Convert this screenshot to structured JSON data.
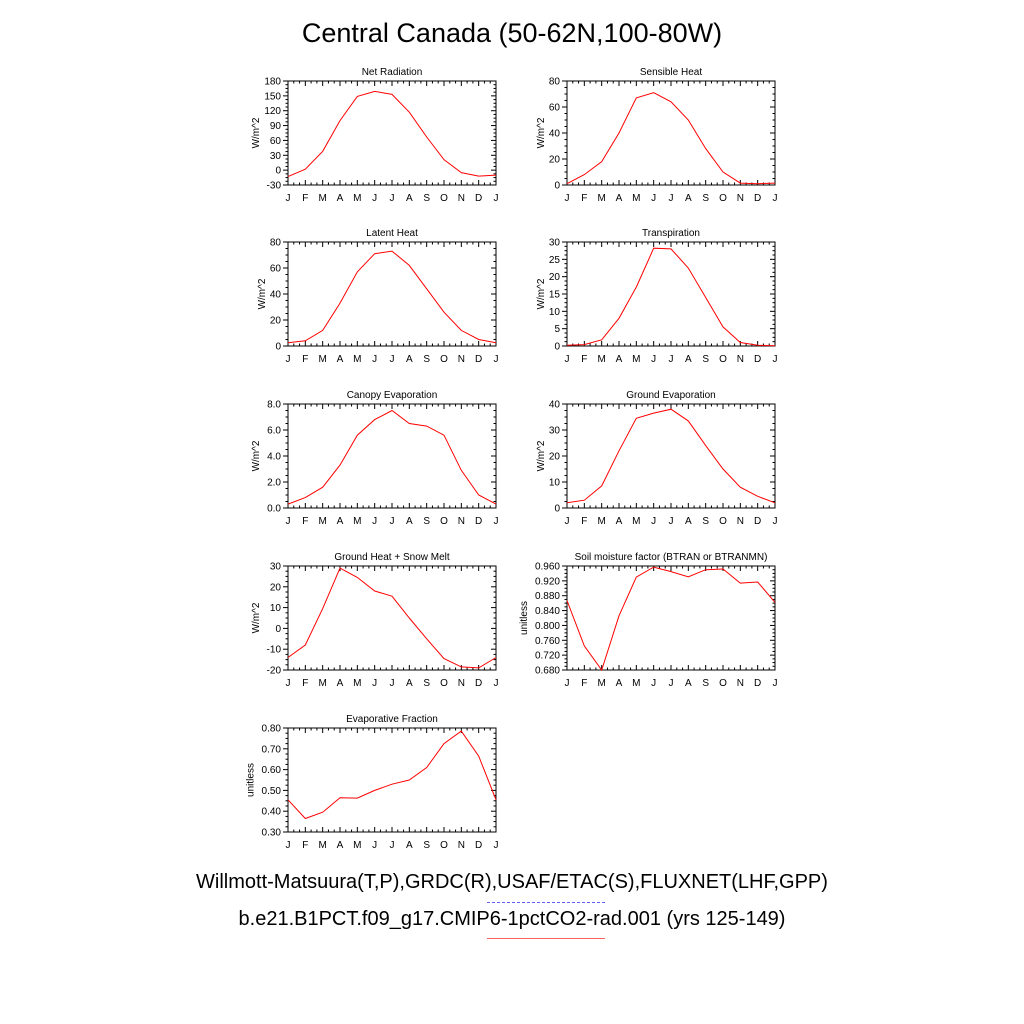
{
  "title": "Central Canada (50-62N,100-80W)",
  "footer": {
    "line1": "Willmott-Matsuura(T,P),GRDC(R),USAF/ETAC(S),FLUXNET(LHF,GPP)",
    "line2": "b.e21.B1PCT.f09_g17.CMIP6-1pctCO2-rad.001 (yrs 125-149)"
  },
  "colors": {
    "model_line": "#ff0000",
    "obs_legend": "#6060ff",
    "axes": "#000000"
  },
  "chart_data": [
    {
      "type": "line",
      "title": "Net Radiation",
      "ylabel": "W/m^2",
      "categories": [
        "J",
        "F",
        "M",
        "A",
        "M",
        "J",
        "J",
        "A",
        "S",
        "O",
        "N",
        "D",
        "J"
      ],
      "ylim": [
        -30,
        180
      ],
      "yticks": [
        "-30",
        "0",
        "30",
        "60",
        "90",
        "120",
        "150",
        "180"
      ],
      "tick_values": [
        -30,
        0,
        30,
        60,
        90,
        120,
        150,
        180
      ],
      "series": [
        {
          "values": [
            -13,
            2,
            38,
            100,
            149,
            159,
            153,
            117,
            67,
            21,
            -5,
            -12,
            -10
          ]
        }
      ]
    },
    {
      "type": "line",
      "title": "Sensible Heat",
      "ylabel": "W/m^2",
      "categories": [
        "J",
        "F",
        "M",
        "A",
        "M",
        "J",
        "J",
        "A",
        "S",
        "O",
        "N",
        "D",
        "J"
      ],
      "ylim": [
        0,
        80
      ],
      "yticks": [
        "0",
        "20",
        "40",
        "60",
        "80"
      ],
      "tick_values": [
        0,
        20,
        40,
        60,
        80
      ],
      "series": [
        {
          "values": [
            1,
            8,
            18,
            40,
            67,
            71,
            64,
            50,
            28,
            10,
            1.5,
            1,
            1.5
          ]
        }
      ]
    },
    {
      "type": "line",
      "title": "Latent Heat",
      "ylabel": "W/m^2",
      "categories": [
        "J",
        "F",
        "M",
        "A",
        "M",
        "J",
        "J",
        "A",
        "S",
        "O",
        "N",
        "D",
        "J"
      ],
      "ylim": [
        0,
        80
      ],
      "yticks": [
        "0",
        "20",
        "40",
        "60",
        "80"
      ],
      "tick_values": [
        0,
        20,
        40,
        60,
        80
      ],
      "series": [
        {
          "values": [
            2.5,
            4,
            12,
            33,
            57,
            71,
            73,
            62,
            44,
            26,
            12,
            5,
            2.5
          ]
        }
      ]
    },
    {
      "type": "line",
      "title": "Transpiration",
      "ylabel": "W/m^2",
      "categories": [
        "J",
        "F",
        "M",
        "A",
        "M",
        "J",
        "J",
        "A",
        "S",
        "O",
        "N",
        "D",
        "J"
      ],
      "ylim": [
        0,
        30
      ],
      "yticks": [
        "0",
        "5",
        "10",
        "15",
        "20",
        "25",
        "30"
      ],
      "tick_values": [
        0,
        5,
        10,
        15,
        20,
        25,
        30
      ],
      "series": [
        {
          "values": [
            0.2,
            0.4,
            1.8,
            8,
            17,
            28.2,
            28,
            22.5,
            14,
            5.5,
            1,
            0.2,
            0.1
          ]
        }
      ]
    },
    {
      "type": "line",
      "title": "Canopy Evaporation",
      "ylabel": "W/m^2",
      "categories": [
        "J",
        "F",
        "M",
        "A",
        "M",
        "J",
        "J",
        "A",
        "S",
        "O",
        "N",
        "D",
        "J"
      ],
      "ylim": [
        0,
        8
      ],
      "yticks": [
        "0.0",
        "2.0",
        "4.0",
        "6.0",
        "8.0"
      ],
      "tick_values": [
        0,
        2,
        4,
        6,
        8
      ],
      "series": [
        {
          "values": [
            0.3,
            0.8,
            1.6,
            3.3,
            5.6,
            6.8,
            7.5,
            6.5,
            6.3,
            5.6,
            2.9,
            1.0,
            0.3
          ]
        }
      ]
    },
    {
      "type": "line",
      "title": "Ground Evaporation",
      "ylabel": "W/m^2",
      "categories": [
        "J",
        "F",
        "M",
        "A",
        "M",
        "J",
        "J",
        "A",
        "S",
        "O",
        "N",
        "D",
        "J"
      ],
      "ylim": [
        0,
        40
      ],
      "yticks": [
        "0",
        "10",
        "20",
        "30",
        "40"
      ],
      "tick_values": [
        0,
        10,
        20,
        30,
        40
      ],
      "series": [
        {
          "values": [
            2,
            3,
            8.5,
            22,
            34.5,
            36.5,
            38,
            33.5,
            24,
            15,
            8,
            4.5,
            2
          ]
        }
      ]
    },
    {
      "type": "line",
      "title": "Ground Heat + Snow Melt",
      "ylabel": "W/m^2",
      "categories": [
        "J",
        "F",
        "M",
        "A",
        "M",
        "J",
        "J",
        "A",
        "S",
        "O",
        "N",
        "D",
        "J"
      ],
      "ylim": [
        -20,
        30
      ],
      "yticks": [
        "-20",
        "-10",
        "0",
        "10",
        "20",
        "30"
      ],
      "tick_values": [
        -20,
        -10,
        0,
        10,
        20,
        30
      ],
      "series": [
        {
          "values": [
            -14,
            -8,
            9.5,
            29,
            24.5,
            18,
            15.5,
            5,
            -5,
            -14.5,
            -18.5,
            -19,
            -14
          ]
        }
      ]
    },
    {
      "type": "line",
      "title": "Soil moisture factor (BTRAN or BTRANMN)",
      "ylabel": "unitless",
      "categories": [
        "J",
        "F",
        "M",
        "A",
        "M",
        "J",
        "J",
        "A",
        "S",
        "O",
        "N",
        "D",
        "J"
      ],
      "ylim": [
        0.68,
        0.96
      ],
      "yticks": [
        "0.680",
        "0.720",
        "0.760",
        "0.800",
        "0.840",
        "0.880",
        "0.920",
        "0.960"
      ],
      "tick_values": [
        0.68,
        0.72,
        0.76,
        0.8,
        0.84,
        0.88,
        0.92,
        0.96
      ],
      "series": [
        {
          "values": [
            0.867,
            0.745,
            0.68,
            0.826,
            0.93,
            0.957,
            0.945,
            0.931,
            0.95,
            0.952,
            0.914,
            0.917,
            0.862
          ]
        }
      ]
    },
    {
      "type": "line",
      "title": "Evaporative Fraction",
      "ylabel": "unitless",
      "categories": [
        "J",
        "F",
        "M",
        "A",
        "M",
        "J",
        "J",
        "A",
        "S",
        "O",
        "N",
        "D",
        "J"
      ],
      "ylim": [
        0.3,
        0.8
      ],
      "yticks": [
        "0.30",
        "0.40",
        "0.50",
        "0.60",
        "0.70",
        "0.80"
      ],
      "tick_values": [
        0.3,
        0.4,
        0.5,
        0.6,
        0.7,
        0.8
      ],
      "series": [
        {
          "values": [
            0.455,
            0.365,
            0.395,
            0.465,
            0.463,
            0.5,
            0.53,
            0.55,
            0.61,
            0.725,
            0.785,
            0.665,
            0.455
          ]
        }
      ]
    }
  ]
}
